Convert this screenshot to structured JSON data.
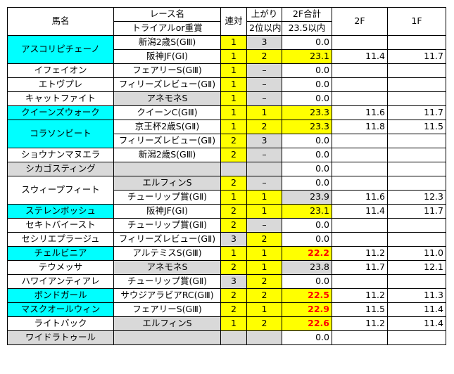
{
  "headers": {
    "horse": "馬名",
    "race1": "レース名",
    "race2": "トライアルor重賞",
    "rentai": "連対",
    "agari1": "上がり",
    "agari2": "2位以内",
    "total1": "2F合計",
    "total2": "23.5以内",
    "f2": "2F",
    "f1": "1F"
  },
  "horses": [
    {
      "name": "アスコリピチェーノ",
      "hl": "cyan",
      "races": [
        {
          "race": "新潟2歳S(GⅢ)",
          "rg": "",
          "ren": "1",
          "rb": "yel",
          "ag": "3",
          "ab": "gray",
          "tot": "0.0",
          "tb": "",
          "tr": false,
          "f2": "",
          "f1": ""
        },
        {
          "race": "阪神JF(GⅠ)",
          "rg": "",
          "ren": "1",
          "rb": "yel",
          "ag": "2",
          "ab": "yel",
          "tot": "23.1",
          "tb": "yel",
          "tr": false,
          "f2": "11.4",
          "f1": "11.7"
        }
      ]
    },
    {
      "name": "イフェイオン",
      "hl": "",
      "races": [
        {
          "race": "フェアリーS(GⅢ)",
          "rg": "",
          "ren": "1",
          "rb": "yel",
          "ag": "–",
          "ab": "gray",
          "tot": "0.0",
          "tb": "",
          "tr": false,
          "f2": "",
          "f1": ""
        }
      ]
    },
    {
      "name": "エトヴプレ",
      "hl": "",
      "races": [
        {
          "race": "フィリーズレビュー(GⅡ)",
          "rg": "",
          "ren": "1",
          "rb": "yel",
          "ag": "–",
          "ab": "gray",
          "tot": "0.0",
          "tb": "",
          "tr": false,
          "f2": "",
          "f1": ""
        }
      ]
    },
    {
      "name": "キャットファイト",
      "hl": "",
      "races": [
        {
          "race": "アネモネS",
          "rg": "gray",
          "ren": "1",
          "rb": "yel",
          "ag": "–",
          "ab": "gray",
          "tot": "0.0",
          "tb": "",
          "tr": false,
          "f2": "",
          "f1": ""
        }
      ]
    },
    {
      "name": "クイーンズウォーク",
      "hl": "cyan",
      "races": [
        {
          "race": "クイーンC(GⅢ)",
          "rg": "",
          "ren": "1",
          "rb": "yel",
          "ag": "1",
          "ab": "yel",
          "tot": "23.3",
          "tb": "yel",
          "tr": false,
          "f2": "11.6",
          "f1": "11.7"
        }
      ]
    },
    {
      "name": "コラソンビート",
      "hl": "cyan",
      "races": [
        {
          "race": "京王杯2歳S(GⅡ)",
          "rg": "",
          "ren": "1",
          "rb": "yel",
          "ag": "2",
          "ab": "yel",
          "tot": "23.3",
          "tb": "yel",
          "tr": false,
          "f2": "11.8",
          "f1": "11.5"
        },
        {
          "race": "フィリーズレビュー(GⅡ)",
          "rg": "",
          "ren": "2",
          "rb": "yel",
          "ag": "3",
          "ab": "gray",
          "tot": "0.0",
          "tb": "",
          "tr": false,
          "f2": "",
          "f1": ""
        }
      ]
    },
    {
      "name": "ショウナンマヌエラ",
      "hl": "",
      "races": [
        {
          "race": "新潟2歳S(GⅢ)",
          "rg": "",
          "ren": "2",
          "rb": "yel",
          "ag": "–",
          "ab": "gray",
          "tot": "0.0",
          "tb": "",
          "tr": false,
          "f2": "",
          "f1": ""
        }
      ]
    },
    {
      "name": "シカゴスティング",
      "hl": "gray",
      "races": [
        {
          "race": "",
          "rg": "gray",
          "ren": "",
          "rb": "gray",
          "ag": "",
          "ab": "gray",
          "tot": "0.0",
          "tb": "",
          "tr": false,
          "f2": "",
          "f1": ""
        }
      ]
    },
    {
      "name": "スウィープフィート",
      "hl": "",
      "races": [
        {
          "race": "エルフィンS",
          "rg": "gray",
          "ren": "2",
          "rb": "yel",
          "ag": "–",
          "ab": "gray",
          "tot": "0.0",
          "tb": "",
          "tr": false,
          "f2": "",
          "f1": ""
        },
        {
          "race": "チューリップ賞(GⅡ)",
          "rg": "",
          "ren": "1",
          "rb": "yel",
          "ag": "1",
          "ab": "yel",
          "tot": "23.9",
          "tb": "gray",
          "tr": false,
          "f2": "11.6",
          "f1": "12.3"
        }
      ]
    },
    {
      "name": "ステレンボッシュ",
      "hl": "cyan",
      "races": [
        {
          "race": "阪神JF(GⅠ)",
          "rg": "",
          "ren": "2",
          "rb": "yel",
          "ag": "1",
          "ab": "yel",
          "tot": "23.1",
          "tb": "yel",
          "tr": false,
          "f2": "11.4",
          "f1": "11.7"
        }
      ]
    },
    {
      "name": "セキトバイースト",
      "hl": "",
      "races": [
        {
          "race": "チューリップ賞(GⅡ)",
          "rg": "",
          "ren": "2",
          "rb": "yel",
          "ag": "–",
          "ab": "gray",
          "tot": "0.0",
          "tb": "",
          "tr": false,
          "f2": "",
          "f1": ""
        }
      ]
    },
    {
      "name": "セシリエプラージュ",
      "hl": "",
      "races": [
        {
          "race": "フィリーズレビュー(GⅡ)",
          "rg": "",
          "ren": "3",
          "rb": "gray",
          "ag": "2",
          "ab": "yel",
          "tot": "0.0",
          "tb": "",
          "tr": false,
          "f2": "",
          "f1": ""
        }
      ]
    },
    {
      "name": "チェルビニア",
      "hl": "cyan",
      "races": [
        {
          "race": "アルテミスS(GⅢ)",
          "rg": "",
          "ren": "1",
          "rb": "yel",
          "ag": "1",
          "ab": "yel",
          "tot": "22.2",
          "tb": "yel",
          "tr": true,
          "f2": "11.2",
          "f1": "11.0"
        }
      ]
    },
    {
      "name": "テウメッサ",
      "hl": "",
      "races": [
        {
          "race": "アネモネS",
          "rg": "gray",
          "ren": "2",
          "rb": "yel",
          "ag": "1",
          "ab": "yel",
          "tot": "23.8",
          "tb": "gray",
          "tr": false,
          "f2": "11.7",
          "f1": "12.1"
        }
      ]
    },
    {
      "name": "ハワイアンティアレ",
      "hl": "",
      "races": [
        {
          "race": "チューリップ賞(GⅡ)",
          "rg": "",
          "ren": "3",
          "rb": "gray",
          "ag": "2",
          "ab": "yel",
          "tot": "0.0",
          "tb": "",
          "tr": false,
          "f2": "",
          "f1": ""
        }
      ]
    },
    {
      "name": "ボンドガール",
      "hl": "cyan",
      "races": [
        {
          "race": "サウジアラビアRC(GⅢ)",
          "rg": "",
          "ren": "2",
          "rb": "yel",
          "ag": "2",
          "ab": "yel",
          "tot": "22.5",
          "tb": "yel",
          "tr": true,
          "f2": "11.2",
          "f1": "11.3"
        }
      ]
    },
    {
      "name": "マスクオールウィン",
      "hl": "cyan",
      "races": [
        {
          "race": "フェアリーS(GⅢ)",
          "rg": "",
          "ren": "2",
          "rb": "yel",
          "ag": "1",
          "ab": "yel",
          "tot": "22.9",
          "tb": "yel",
          "tr": true,
          "f2": "11.5",
          "f1": "11.4"
        }
      ]
    },
    {
      "name": "ライトバック",
      "hl": "",
      "races": [
        {
          "race": "エルフィンS",
          "rg": "gray",
          "ren": "1",
          "rb": "yel",
          "ag": "2",
          "ab": "yel",
          "tot": "22.6",
          "tb": "yel",
          "tr": true,
          "f2": "11.2",
          "f1": "11.4"
        }
      ]
    },
    {
      "name": "ワイドラトゥール",
      "hl": "gray",
      "races": [
        {
          "race": "",
          "rg": "gray",
          "ren": "",
          "rb": "gray",
          "ag": "",
          "ab": "gray",
          "tot": "0.0",
          "tb": "",
          "tr": false,
          "f2": "",
          "f1": ""
        }
      ]
    }
  ]
}
